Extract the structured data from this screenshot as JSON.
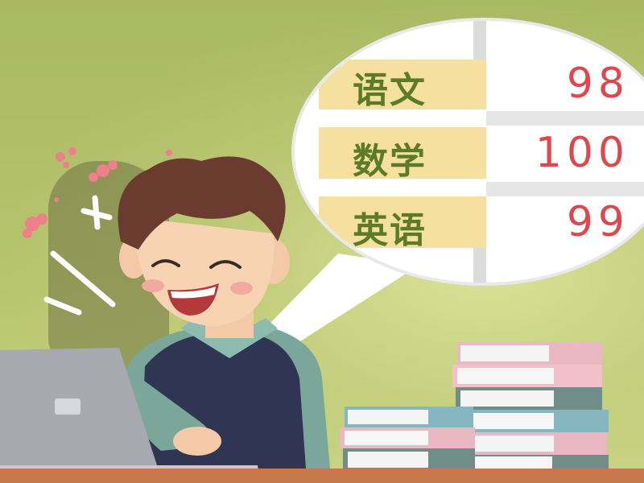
{
  "scores": [
    {
      "subject": "语文",
      "score": "98"
    },
    {
      "subject": "数学",
      "score": "100"
    },
    {
      "subject": "英语",
      "score": "99"
    }
  ],
  "colors": {
    "background": "#b3c06a",
    "subject_text": "#5b7a2a",
    "score_text": "#e0474c",
    "subject_cell": "#f5dfa1",
    "bubble": "#ffffff",
    "desk": "#c7794d"
  }
}
